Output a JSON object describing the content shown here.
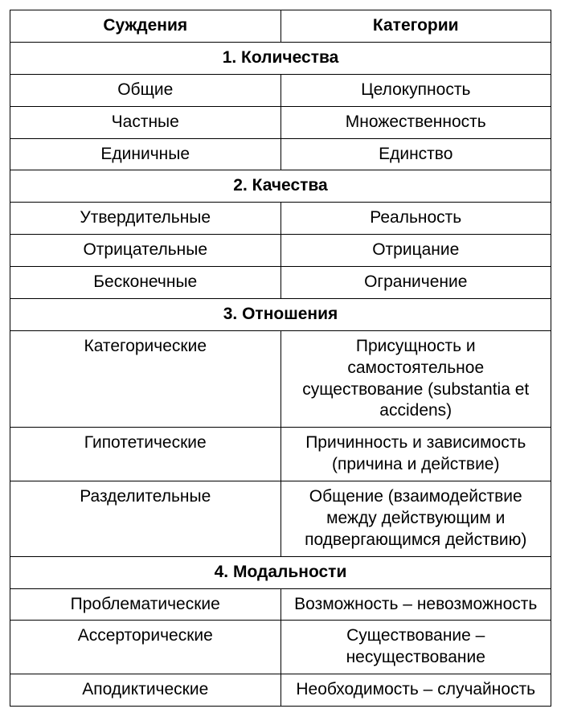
{
  "table": {
    "border_color": "#000000",
    "background_color": "#ffffff",
    "text_color": "#000000",
    "font_family": "Arial",
    "header_fontsize": 21,
    "cell_fontsize": 21,
    "header_fontweight": "700",
    "section_fontweight": "700",
    "columns": [
      "Суждения",
      "Категории"
    ],
    "column_widths_percent": [
      50,
      50
    ],
    "sections": [
      {
        "title": "1. Количества",
        "rows": [
          [
            "Общие",
            "Целокупность"
          ],
          [
            "Частные",
            "Множественность"
          ],
          [
            "Единичные",
            "Единство"
          ]
        ]
      },
      {
        "title": "2. Качества",
        "rows": [
          [
            "Утвердительные",
            "Реальность"
          ],
          [
            "Отрицательные",
            "Отрицание"
          ],
          [
            "Бесконечные",
            "Ограничение"
          ]
        ]
      },
      {
        "title": "3. Отношения",
        "rows": [
          [
            "Категорические",
            "Присущность и самостоятельное существование (substantia et accidens)"
          ],
          [
            "Гипотетические",
            "Причинность и зависимость (причина и действие)"
          ],
          [
            "Разделительные",
            "Общение (взаимодействие между действующим и подвергающимся действию)"
          ]
        ]
      },
      {
        "title": "4. Модальности",
        "rows": [
          [
            "Проблематические",
            "Возможность – невозможность"
          ],
          [
            "Ассерторические",
            "Существование – несуществование"
          ],
          [
            "Аподиктические",
            "Необходимость – случайность"
          ]
        ]
      }
    ]
  }
}
